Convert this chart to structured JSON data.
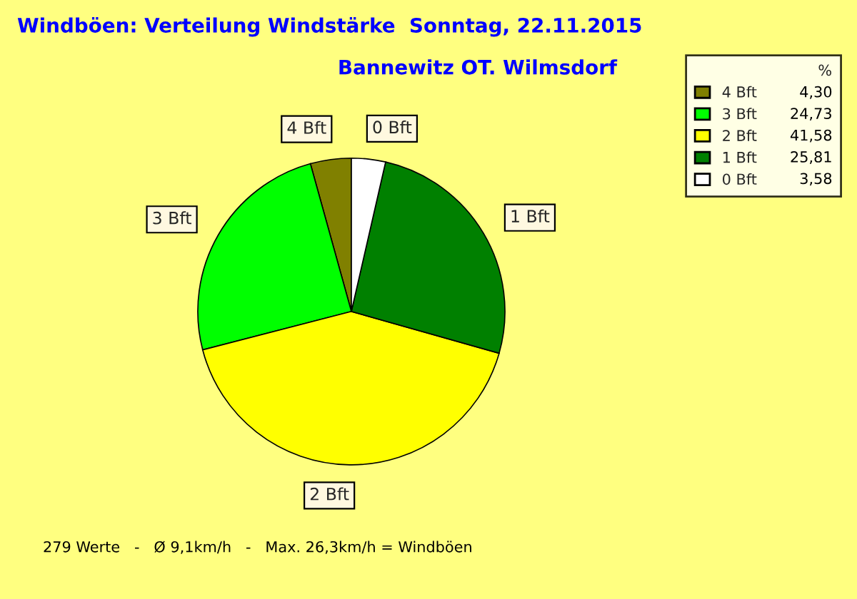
{
  "chart_data": {
    "type": "pie",
    "title": "Windböen: Verteilung Windstärke  Sonntag, 22.11.2015",
    "subtitle": "Bannewitz OT. Wilmsdorf",
    "categories": [
      "4 Bft",
      "3 Bft",
      "2 Bft",
      "1 Bft",
      "0 Bft"
    ],
    "values": [
      4.3,
      24.73,
      41.58,
      25.81,
      3.58
    ],
    "value_labels": [
      "4,30",
      "24,73",
      "41,58",
      "25,81",
      "3,58"
    ],
    "colors": [
      "#808000",
      "#00ff00",
      "#ffff00",
      "#008000",
      "#ffffff"
    ],
    "legend_title": "%",
    "legend": "top right",
    "annotations": [
      "279 Werte   -   Ø 9,1km/h   -   Max. 26,3km/h = Windböen"
    ]
  }
}
